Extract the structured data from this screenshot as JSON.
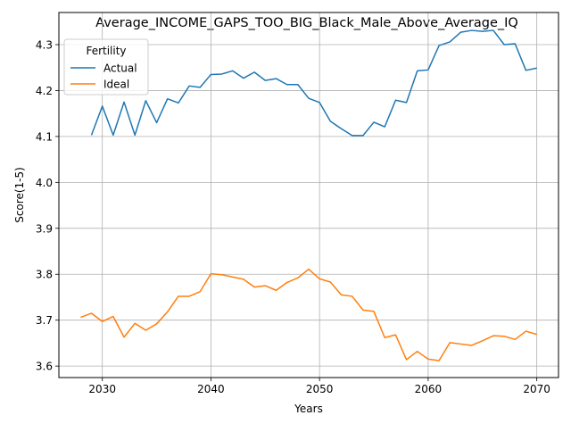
{
  "chart_data": {
    "type": "line",
    "title": "Average_INCOME_GAPS_TOO_BIG_Black_Male_Above_Average_IQ",
    "xlabel": "Years",
    "ylabel": "Score(1-5)",
    "xlim": [
      2026,
      2072
    ],
    "ylim": [
      3.575,
      4.37
    ],
    "xticks": [
      2030,
      2040,
      2050,
      2060,
      2070
    ],
    "yticks": [
      3.6,
      3.7,
      3.8,
      3.9,
      4.0,
      4.1,
      4.2,
      4.3
    ],
    "ytick_labels": [
      "3.6",
      "3.7",
      "3.8",
      "3.9",
      "4.0",
      "4.1",
      "4.2",
      "4.3"
    ],
    "grid": true,
    "legend": {
      "title": "Fertility",
      "placement": "top-left"
    },
    "series": [
      {
        "name": "Actual",
        "color": "#1f77b4",
        "x": [
          2029,
          2030,
          2031,
          2032,
          2033,
          2034,
          2035,
          2036,
          2037,
          2038,
          2039,
          2040,
          2041,
          2042,
          2043,
          2044,
          2045,
          2046,
          2047,
          2048,
          2049,
          2050,
          2051,
          2052,
          2053,
          2054,
          2055,
          2056,
          2057,
          2058,
          2059,
          2060,
          2061,
          2062,
          2063,
          2064,
          2065,
          2066,
          2067,
          2068,
          2069,
          2070
        ],
        "y": [
          4.103,
          4.166,
          4.103,
          4.175,
          4.103,
          4.178,
          4.13,
          4.182,
          4.173,
          4.21,
          4.207,
          4.235,
          4.236,
          4.243,
          4.227,
          4.24,
          4.222,
          4.226,
          4.213,
          4.213,
          4.183,
          4.174,
          4.133,
          4.117,
          4.102,
          4.102,
          4.131,
          4.121,
          4.179,
          4.174,
          4.243,
          4.245,
          4.298,
          4.306,
          4.327,
          4.331,
          4.329,
          4.331,
          4.3,
          4.302,
          4.244,
          4.249
        ]
      },
      {
        "name": "Ideal",
        "color": "#ff7f0e",
        "x": [
          2028,
          2029,
          2030,
          2031,
          2032,
          2033,
          2034,
          2035,
          2036,
          2037,
          2038,
          2039,
          2040,
          2041,
          2042,
          2043,
          2044,
          2045,
          2046,
          2047,
          2048,
          2049,
          2050,
          2051,
          2052,
          2053,
          2054,
          2055,
          2056,
          2057,
          2058,
          2059,
          2060,
          2061,
          2062,
          2063,
          2064,
          2065,
          2066,
          2067,
          2068,
          2069,
          2070
        ],
        "y": [
          3.706,
          3.715,
          3.697,
          3.708,
          3.663,
          3.693,
          3.678,
          3.692,
          3.718,
          3.752,
          3.752,
          3.762,
          3.801,
          3.799,
          3.794,
          3.789,
          3.772,
          3.775,
          3.765,
          3.782,
          3.792,
          3.811,
          3.79,
          3.783,
          3.755,
          3.752,
          3.722,
          3.719,
          3.662,
          3.668,
          3.614,
          3.632,
          3.615,
          3.612,
          3.651,
          3.648,
          3.645,
          3.655,
          3.666,
          3.665,
          3.658,
          3.676,
          3.669
        ]
      }
    ]
  }
}
